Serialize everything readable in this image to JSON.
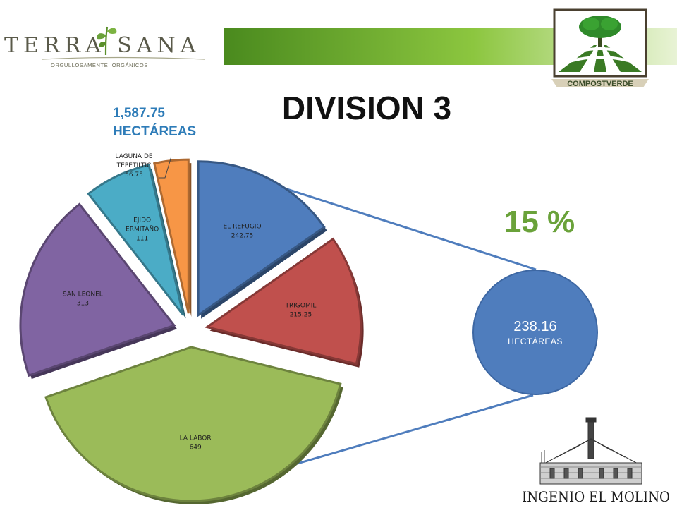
{
  "header": {
    "brand_left": "TERRA SANA",
    "brand_left_tagline": "ORGULLOSAMENTE, ORGÁNICOS",
    "brand_right": "COMPOSTVERDE",
    "brand_bottom": "INGENIO EL MOLINO"
  },
  "title": "DIVISION 3",
  "total": {
    "value": "1,587.75",
    "unit": "HECTÁREAS"
  },
  "percent_label": "15 %",
  "callout": {
    "value": "238.16",
    "unit": "HECTÁREAS"
  },
  "colors": {
    "el_refugio": "#4f7dbd",
    "trigomil": "#c0504d",
    "la_labor": "#9bbb59",
    "san_leonel": "#8064a2",
    "ejido_ermitano": "#4bacc6",
    "laguna": "#f79646",
    "title_blue": "#2e7cb8",
    "percent_green": "#6aa23a"
  },
  "chart_data": {
    "type": "pie",
    "categories": [
      "EL REFUGIO",
      "TRIGOMIL",
      "LA LABOR",
      "SAN LEONEL",
      "EJIDO ERMITAÑO",
      "LAGUNA DE TEPETILTIC"
    ],
    "values": [
      242.75,
      215.25,
      649,
      313,
      111,
      56.75
    ],
    "value_labels": [
      "242.75",
      "215.25",
      "649",
      "313",
      "111",
      "56.75"
    ],
    "exploded": true,
    "data_labels": "inside"
  }
}
